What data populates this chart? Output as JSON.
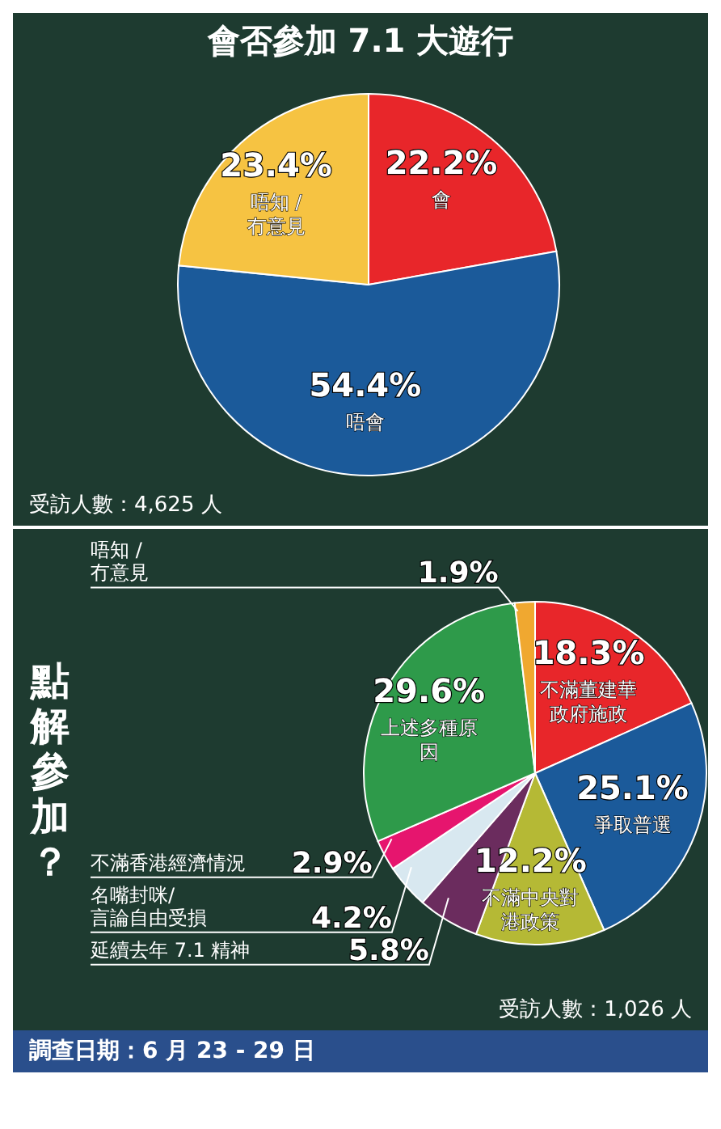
{
  "chart_data": [
    {
      "type": "pie",
      "title": "會否參加 7.1 大遊行",
      "categories": [
        "會",
        "唔會",
        "唔知 / 冇意見"
      ],
      "values": [
        22.2,
        54.4,
        23.4
      ],
      "colors": [
        "#e8262a",
        "#1b5a9a",
        "#f6c342"
      ],
      "value_labels": [
        "22.2%",
        "54.4%",
        "23.4%"
      ],
      "annotations": [
        "受訪人數：4,625 人"
      ]
    },
    {
      "type": "pie",
      "title": "點解參加？",
      "categories": [
        "不滿董建華政府施政",
        "爭取普選",
        "不滿中央對港政策",
        "延續去年 7.1 精神",
        "名嘴封咪/言論自由受損",
        "不滿香港經濟情況",
        "上述多種原因",
        "唔知 /冇意見"
      ],
      "values": [
        18.3,
        25.1,
        12.2,
        5.8,
        4.2,
        2.9,
        29.6,
        1.9
      ],
      "colors": [
        "#e8262a",
        "#1b5a9a",
        "#b5b935",
        "#6b2c5e",
        "#d8e8f0",
        "#e6156e",
        "#2e9a4a",
        "#f0a830"
      ],
      "value_labels": [
        "18.3%",
        "25.1%",
        "12.2%",
        "5.8%",
        "4.2%",
        "2.9%",
        "29.6%",
        "1.9%"
      ],
      "annotations": [
        "受訪人數：1,026 人",
        "調查日期：6 月 23 - 29 日"
      ]
    }
  ]
}
